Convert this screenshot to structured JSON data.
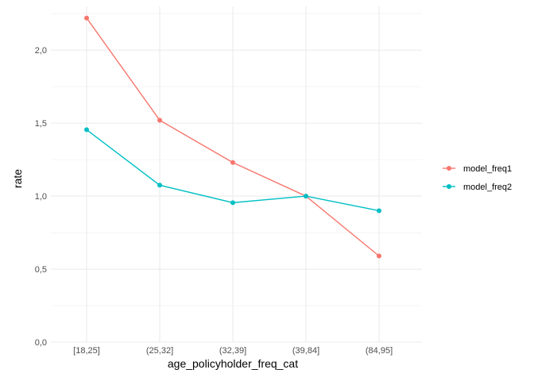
{
  "chart_data": {
    "type": "line",
    "title": "",
    "xlabel": "age_policyholder_freq_cat",
    "ylabel": "rate",
    "categories": [
      "[18,25]",
      "(25,32]",
      "(32,39]",
      "(39,84]",
      "(84,95]"
    ],
    "series": [
      {
        "name": "model_freq1",
        "color": "#F8766D",
        "values": [
          2.22,
          1.52,
          1.23,
          1.0,
          0.59
        ]
      },
      {
        "name": "model_freq2",
        "color": "#00BFC4",
        "values": [
          1.455,
          1.075,
          0.955,
          1.0,
          0.9
        ]
      }
    ],
    "y_ticks": [
      0.0,
      0.5,
      1.0,
      1.5,
      2.0
    ],
    "y_tick_labels": [
      "0,0",
      "0,5",
      "1,0",
      "1,5",
      "2,0"
    ],
    "ylim": [
      0.0,
      2.3
    ],
    "grid": true,
    "legend_position": "right",
    "theme": "minimal"
  }
}
